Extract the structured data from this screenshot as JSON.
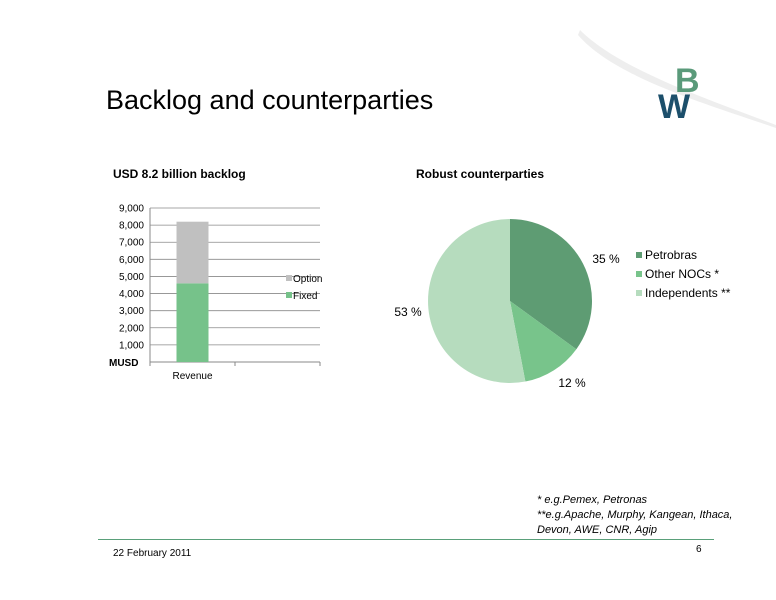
{
  "slide": {
    "title": "Backlog and counterparties",
    "date": "22 February 2011",
    "page_number": "6"
  },
  "logo": {
    "text": "BW",
    "colors": {
      "b": "#5a9a7a",
      "w": "#1c4f6b"
    }
  },
  "chart_data": [
    {
      "type": "bar",
      "title": "USD 8.2 billion backlog",
      "ylabel": "MUSD",
      "categories": [
        "Revenue"
      ],
      "stacked": true,
      "ylim": [
        0,
        9000
      ],
      "yticks": [
        "1,000",
        "2,000",
        "3,000",
        "4,000",
        "5,000",
        "6,000",
        "7,000",
        "8,000",
        "9,000"
      ],
      "series": [
        {
          "name": "Fixed",
          "values": [
            4600
          ],
          "color": "#76c28a"
        },
        {
          "name": "Option",
          "values": [
            3600
          ],
          "color": "#c0c0c0"
        }
      ],
      "legend": [
        "Option",
        "Fixed"
      ],
      "grid": true
    },
    {
      "type": "pie",
      "title": "Robust counterparties",
      "slices": [
        {
          "name": "Petrobras",
          "value": 35,
          "label": "35 %",
          "color": "#5e9c73"
        },
        {
          "name": "Other NOCs *",
          "value": 12,
          "label": "12 %",
          "color": "#78c48b"
        },
        {
          "name": "Independents **",
          "value": 53,
          "label": "53 %",
          "color": "#b6dcbe"
        }
      ],
      "legend_position": "right"
    }
  ],
  "footnotes": [
    "* e.g.Pemex, Petronas",
    "**e.g.Apache, Murphy, Kangean, Ithaca, Devon, AWE, CNR, Agip"
  ]
}
